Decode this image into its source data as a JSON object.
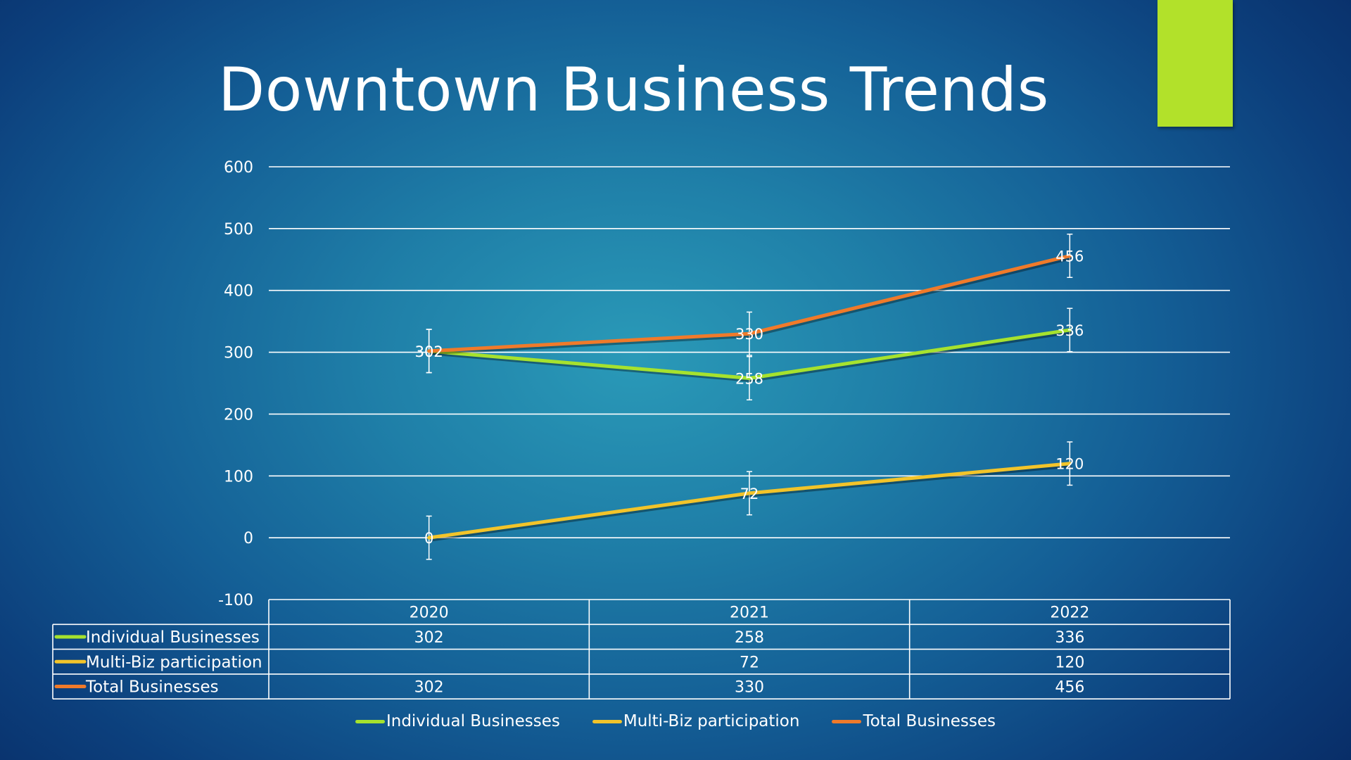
{
  "slide": {
    "title": "Downtown Business Trends",
    "accent_color": "#b2e12a"
  },
  "chart_data": {
    "type": "line",
    "title": "",
    "categories": [
      "2020",
      "2021",
      "2022"
    ],
    "ylim": [
      -100,
      600
    ],
    "yticks": [
      -100,
      0,
      100,
      200,
      300,
      400,
      500,
      600
    ],
    "grid": true,
    "error_bars": true,
    "series": [
      {
        "name": "Individual Businesses",
        "values": [
          302,
          258,
          336
        ],
        "labels": [
          "302",
          "258",
          "336"
        ],
        "table_values": [
          "302",
          "258",
          "336"
        ],
        "color": "#a6e22e"
      },
      {
        "name": "Multi-Biz participation",
        "values": [
          0,
          72,
          120
        ],
        "labels": [
          "0",
          "72",
          "120"
        ],
        "table_values": [
          "",
          "72",
          "120"
        ],
        "color": "#f2c42a"
      },
      {
        "name": "Total Businesses",
        "values": [
          302,
          330,
          456
        ],
        "labels": [
          "302",
          "330",
          "456"
        ],
        "table_values": [
          "302",
          "330",
          "456"
        ],
        "color": "#f07a2a"
      }
    ],
    "error_bar_size": 35,
    "legend_position": "bottom",
    "data_table": true
  }
}
